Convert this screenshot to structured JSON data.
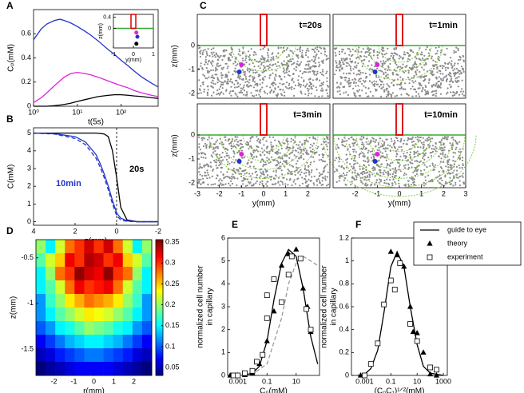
{
  "chart_data": [
    {
      "type": "line",
      "label": "A",
      "xlabel": "t(5s)",
      "ylabel": "Cₚ(mM)",
      "xlog": true,
      "xlim": [
        1,
        700
      ],
      "xticks": [
        {
          "value": 1,
          "label": "10⁰"
        },
        {
          "value": 10,
          "label": "10¹"
        },
        {
          "value": 100,
          "label": "10²"
        }
      ],
      "ylim": [
        0,
        0.8
      ],
      "yticks": [
        0,
        0.2,
        0.4,
        0.6
      ],
      "x": [
        1,
        1.5,
        2,
        3,
        4,
        5,
        7,
        10,
        15,
        20,
        30,
        50,
        70,
        100,
        150,
        200,
        300,
        500,
        700
      ],
      "series": [
        {
          "color": "#2233cc",
          "values": [
            0.55,
            0.64,
            0.68,
            0.71,
            0.72,
            0.71,
            0.69,
            0.66,
            0.62,
            0.59,
            0.54,
            0.47,
            0.43,
            0.38,
            0.33,
            0.29,
            0.24,
            0.19,
            0.16
          ]
        },
        {
          "color": "#dd22dd",
          "values": [
            0.03,
            0.07,
            0.11,
            0.17,
            0.21,
            0.24,
            0.27,
            0.28,
            0.27,
            0.26,
            0.24,
            0.21,
            0.19,
            0.17,
            0.15,
            0.13,
            0.11,
            0.09,
            0.08
          ]
        },
        {
          "color": "#000000",
          "values": [
            0,
            0,
            0,
            0.005,
            0.01,
            0.015,
            0.025,
            0.04,
            0.055,
            0.065,
            0.08,
            0.09,
            0.095,
            0.095,
            0.09,
            0.085,
            0.08,
            0.07,
            0.065
          ]
        }
      ]
    },
    {
      "type": "scatter",
      "xlabel": "y(mm)",
      "ylabel": "z(mm)",
      "xlim": [
        -1,
        1
      ],
      "xticks": [
        -1,
        0,
        1
      ],
      "ylim": [
        -0.7,
        0.5
      ],
      "yticks": [
        0.4,
        0
      ],
      "series": [
        {
          "color": "#dd22dd",
          "marker": "circle",
          "x": [
            0.15
          ],
          "values": [
            -0.15
          ]
        },
        {
          "color": "#2233cc",
          "marker": "circle",
          "x": [
            0.2
          ],
          "values": [
            -0.3
          ]
        },
        {
          "color": "#000000",
          "marker": "circle",
          "x": [
            0.15
          ],
          "values": [
            -0.55
          ]
        }
      ]
    },
    {
      "type": "line",
      "label": "B",
      "xlabel": "z(mm)",
      "ylabel": "C(mM)",
      "vline": 0,
      "xlim": [
        4,
        -2
      ],
      "xticks": [
        4,
        2,
        0,
        -2
      ],
      "ylim": [
        -0.2,
        5.3
      ],
      "yticks": [
        0,
        1,
        2,
        3,
        4,
        5
      ],
      "annotations": [
        "10min",
        "20s"
      ],
      "x": [
        4,
        3,
        2,
        1.5,
        1,
        0.8,
        0.6,
        0.4,
        0.2,
        0,
        -0.2,
        -0.5,
        -1,
        -1.5,
        -2
      ],
      "series": [
        {
          "color": "#000000",
          "values": [
            5,
            5,
            5,
            5,
            5,
            4.98,
            4.95,
            4.8,
            4,
            2.5,
            0.8,
            0.1,
            0,
            0,
            0
          ]
        },
        {
          "color": "#2233cc",
          "values": [
            5,
            4.97,
            4.8,
            4.5,
            3.8,
            3.3,
            2.7,
            2,
            1.2,
            0.5,
            0.2,
            0.05,
            0,
            0,
            0
          ]
        },
        {
          "color": "#2233cc",
          "dash": true,
          "values": [
            5,
            4.95,
            4.7,
            4.35,
            3.6,
            3.1,
            2.5,
            1.8,
            1,
            0.35,
            0.1,
            0.02,
            0,
            0,
            0
          ]
        }
      ]
    },
    {
      "type": "field",
      "label": "C",
      "title": "t=20s",
      "ylabel": "z(mm)",
      "xlim": [
        -3,
        3
      ],
      "ylim": [
        -2.2,
        1.3
      ],
      "yticks": [
        0,
        -1,
        -2
      ]
    },
    {
      "type": "field",
      "title": "t=1min",
      "xlim": [
        -3,
        3
      ],
      "ylim": [
        -2.2,
        1.3
      ]
    },
    {
      "type": "field",
      "title": "t=3min",
      "ylabel": "z(mm)",
      "xlabel": "y(mm)",
      "xlim": [
        -3,
        3
      ],
      "ylim": [
        -2.2,
        1.3
      ],
      "yticks": [
        0,
        -1,
        -2
      ],
      "xticks": [
        -3,
        -2,
        -1,
        0,
        1,
        2
      ]
    },
    {
      "type": "field",
      "title": "t=10min",
      "xlabel": "y(mm)",
      "xlim": [
        -3,
        3
      ],
      "ylim": [
        -2.2,
        1.3
      ],
      "xticks": [
        -2,
        -1,
        0,
        1,
        2,
        3
      ]
    },
    {
      "type": "heatmap",
      "label": "D",
      "xlabel": "r(mm)",
      "ylabel": "z(mm)",
      "xlim": [
        -2.9,
        2.9
      ],
      "xticks": [
        -2,
        -1,
        0,
        1,
        2
      ],
      "ylim": [
        -1.79,
        -0.3
      ],
      "yticks": [
        -0.5,
        -1,
        -1.5
      ],
      "clim": [
        0.031,
        0.356
      ],
      "cticks": [
        0.05,
        0.1,
        0.15,
        0.2,
        0.25,
        0.3,
        0.35
      ],
      "matrix": [
        [
          0.2,
          0.15,
          0.22,
          0.28,
          0.3,
          0.33,
          0.3,
          0.33,
          0.28,
          0.22,
          0.15,
          0.2
        ],
        [
          0.18,
          0.22,
          0.25,
          0.32,
          0.3,
          0.34,
          0.33,
          0.3,
          0.32,
          0.25,
          0.22,
          0.18
        ],
        [
          0.15,
          0.2,
          0.28,
          0.3,
          0.35,
          0.33,
          0.32,
          0.35,
          0.3,
          0.28,
          0.2,
          0.15
        ],
        [
          0.15,
          0.18,
          0.22,
          0.28,
          0.32,
          0.3,
          0.31,
          0.32,
          0.28,
          0.22,
          0.18,
          0.15
        ],
        [
          0.12,
          0.17,
          0.2,
          0.24,
          0.26,
          0.28,
          0.27,
          0.26,
          0.24,
          0.2,
          0.17,
          0.12
        ],
        [
          0.12,
          0.15,
          0.18,
          0.2,
          0.22,
          0.24,
          0.23,
          0.22,
          0.2,
          0.18,
          0.15,
          0.12
        ],
        [
          0.1,
          0.12,
          0.15,
          0.16,
          0.18,
          0.2,
          0.19,
          0.18,
          0.16,
          0.15,
          0.12,
          0.1
        ],
        [
          0.07,
          0.09,
          0.11,
          0.13,
          0.14,
          0.15,
          0.15,
          0.14,
          0.13,
          0.11,
          0.09,
          0.07
        ],
        [
          0.05,
          0.06,
          0.08,
          0.09,
          0.1,
          0.11,
          0.11,
          0.1,
          0.09,
          0.08,
          0.06,
          0.05
        ],
        [
          0.03,
          0.04,
          0.05,
          0.06,
          0.07,
          0.07,
          0.07,
          0.07,
          0.06,
          0.05,
          0.04,
          0.03
        ]
      ]
    },
    {
      "type": "line",
      "label": "E",
      "xlabel": "C₀(mM)",
      "ylabel": [
        "normalized cell number",
        "in capillary"
      ],
      "xlog": true,
      "xlim": [
        0.0002,
        400
      ],
      "xticks": [
        0.001,
        0.1,
        10
      ],
      "ylim": [
        0,
        6
      ],
      "yticks": [
        0,
        1,
        2,
        3,
        4,
        5,
        6
      ],
      "series": [
        {
          "color": "#000000",
          "x": [
            0.0003,
            0.001,
            0.003,
            0.01,
            0.03,
            0.1,
            0.3,
            1,
            3,
            10,
            30,
            100,
            300
          ],
          "values": [
            0,
            0,
            0.02,
            0.1,
            0.4,
            1.5,
            3.3,
            4.9,
            5.5,
            5.2,
            3.8,
            1.7,
            0.5
          ]
        },
        {
          "color": "#999999",
          "dash": true,
          "x": [
            0.001,
            0.01,
            0.1,
            1,
            3,
            10,
            30,
            100,
            300
          ],
          "values": [
            0,
            0.05,
            0.5,
            2.5,
            4,
            4.9,
            5.2,
            5,
            4.8
          ]
        },
        {
          "color": "#000000",
          "marker": "triangle",
          "x": [
            0.0003,
            0.001,
            0.003,
            0.01,
            0.03,
            0.1,
            0.3,
            1,
            3,
            10,
            30,
            60,
            100
          ],
          "values": [
            0,
            0,
            0.02,
            0.1,
            0.5,
            1.5,
            2.8,
            4.8,
            5.3,
            5.5,
            3.8,
            3,
            1.9
          ]
        },
        {
          "color": "#000000",
          "marker": "square",
          "x": [
            0.0005,
            0.001,
            0.003,
            0.01,
            0.02,
            0.05,
            0.1,
            0.1,
            0.3,
            1,
            3,
            5,
            20,
            50,
            100
          ],
          "values": [
            0,
            0,
            0.1,
            0.2,
            0.6,
            0.9,
            2.5,
            3.5,
            4.2,
            3.2,
            4.4,
            5.2,
            5.1,
            2.9,
            2
          ]
        }
      ]
    },
    {
      "type": "line",
      "label": "F",
      "xlabel": "(C₀C₁)¹ᐟ²(mM)",
      "ylabel": [
        "normalized cell number",
        "in capillary"
      ],
      "xlog": true,
      "legend": "upper right",
      "xlim": [
        0.0001,
        2000
      ],
      "xticks": [
        0.001,
        0.1,
        10,
        1000
      ],
      "ylim": [
        0,
        1.2
      ],
      "yticks": [
        0,
        0.2,
        0.4,
        0.6,
        0.8,
        1,
        1.2
      ],
      "series": [
        {
          "name": "guide to eye",
          "color": "#000000",
          "x": [
            0.0003,
            0.001,
            0.003,
            0.01,
            0.03,
            0.1,
            0.3,
            1,
            3,
            10,
            30,
            100,
            1000
          ],
          "values": [
            0,
            0.01,
            0.06,
            0.22,
            0.55,
            0.95,
            1.08,
            0.95,
            0.6,
            0.27,
            0.08,
            0.02,
            0
          ]
        },
        {
          "name": "theory",
          "color": "#000000",
          "marker": "triangle",
          "x": [
            0.0005,
            0.1,
            0.3,
            1,
            3,
            5,
            10,
            30,
            100,
            300
          ],
          "values": [
            0,
            1.08,
            1.05,
            0.95,
            0.6,
            0.38,
            0.37,
            0.2,
            0.01,
            0
          ]
        },
        {
          "name": "experiment",
          "color": "#000000",
          "marker": "square",
          "x": [
            0.001,
            0.003,
            0.01,
            0.03,
            0.1,
            0.2,
            0.5,
            3,
            10,
            100,
            300
          ],
          "values": [
            0,
            0.1,
            0.28,
            0.62,
            0.83,
            0.75,
            0.98,
            0.45,
            0.3,
            0.07,
            0.05
          ]
        }
      ]
    }
  ]
}
